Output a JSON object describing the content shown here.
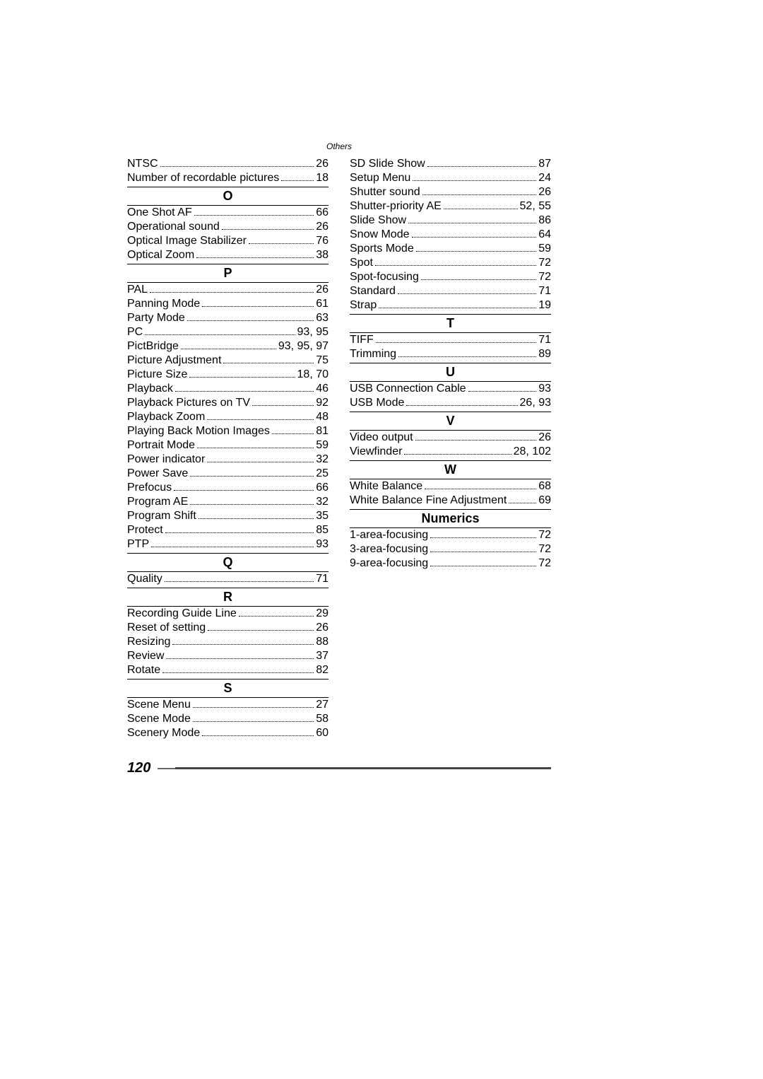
{
  "header": {
    "category": "Others"
  },
  "pageNumber": "120",
  "left": {
    "pre": [
      {
        "term": "NTSC",
        "page": "26"
      },
      {
        "term": "Number of recordable pictures",
        "page": "18"
      }
    ],
    "sections": [
      {
        "letter": "O",
        "entries": [
          {
            "term": "One Shot AF",
            "page": "66"
          },
          {
            "term": "Operational sound",
            "page": "26"
          },
          {
            "term": "Optical Image Stabilizer",
            "page": "76"
          },
          {
            "term": "Optical Zoom",
            "page": "38"
          }
        ]
      },
      {
        "letter": "P",
        "entries": [
          {
            "term": "PAL",
            "page": "26"
          },
          {
            "term": "Panning Mode",
            "page": "61"
          },
          {
            "term": "Party Mode",
            "page": "63"
          },
          {
            "term": "PC",
            "page": "93, 95"
          },
          {
            "term": "PictBridge",
            "page": "93, 95, 97"
          },
          {
            "term": "Picture Adjustment",
            "page": "75"
          },
          {
            "term": "Picture Size",
            "page": "18, 70"
          },
          {
            "term": "Playback",
            "page": "46"
          },
          {
            "term": "Playback Pictures on TV",
            "page": "92"
          },
          {
            "term": "Playback Zoom",
            "page": "48"
          },
          {
            "term": "Playing Back Motion Images",
            "page": "81"
          },
          {
            "term": "Portrait Mode",
            "page": "59"
          },
          {
            "term": "Power indicator",
            "page": "32"
          },
          {
            "term": "Power Save",
            "page": "25"
          },
          {
            "term": "Prefocus",
            "page": "66"
          },
          {
            "term": "Program AE",
            "page": "32"
          },
          {
            "term": "Program Shift",
            "page": "35"
          },
          {
            "term": "Protect",
            "page": "85"
          },
          {
            "term": "PTP",
            "page": "93"
          }
        ]
      },
      {
        "letter": "Q",
        "entries": [
          {
            "term": "Quality",
            "page": "71"
          }
        ]
      },
      {
        "letter": "R",
        "entries": [
          {
            "term": "Recording Guide Line",
            "page": "29"
          },
          {
            "term": "Reset of setting",
            "page": "26"
          },
          {
            "term": "Resizing",
            "page": "88"
          },
          {
            "term": "Review",
            "page": "37"
          },
          {
            "term": "Rotate",
            "page": "82"
          }
        ]
      },
      {
        "letter": "S",
        "entries": [
          {
            "term": "Scene Menu",
            "page": "27"
          },
          {
            "term": "Scene Mode",
            "page": "58"
          },
          {
            "term": "Scenery Mode",
            "page": "60"
          }
        ]
      }
    ]
  },
  "right": {
    "pre": [
      {
        "term": "SD Slide Show",
        "page": "87"
      },
      {
        "term": "Setup Menu",
        "page": "24"
      },
      {
        "term": "Shutter sound",
        "page": "26"
      },
      {
        "term": "Shutter-priority AE",
        "page": "52, 55"
      },
      {
        "term": "Slide Show",
        "page": "86"
      },
      {
        "term": "Snow Mode",
        "page": "64"
      },
      {
        "term": "Sports Mode",
        "page": "59"
      },
      {
        "term": "Spot",
        "page": "72"
      },
      {
        "term": "Spot-focusing",
        "page": "72"
      },
      {
        "term": "Standard",
        "page": "71"
      },
      {
        "term": "Strap",
        "page": "19"
      }
    ],
    "sections": [
      {
        "letter": "T",
        "entries": [
          {
            "term": "TIFF",
            "page": "71"
          },
          {
            "term": "Trimming",
            "page": "89"
          }
        ]
      },
      {
        "letter": "U",
        "entries": [
          {
            "term": "USB Connection Cable",
            "page": "93"
          },
          {
            "term": "USB Mode",
            "page": "26, 93"
          }
        ]
      },
      {
        "letter": "V",
        "entries": [
          {
            "term": "Video output",
            "page": "26"
          },
          {
            "term": "Viewfinder",
            "page": "28, 102"
          }
        ]
      },
      {
        "letter": "W",
        "entries": [
          {
            "term": "White Balance",
            "page": "68"
          },
          {
            "term": "White Balance Fine Adjustment",
            "page": "69"
          }
        ]
      },
      {
        "letter": "Numerics",
        "entries": [
          {
            "term": "1-area-focusing",
            "page": "72"
          },
          {
            "term": "3-area-focusing",
            "page": "72"
          },
          {
            "term": "9-area-focusing",
            "page": "72"
          }
        ]
      }
    ]
  }
}
